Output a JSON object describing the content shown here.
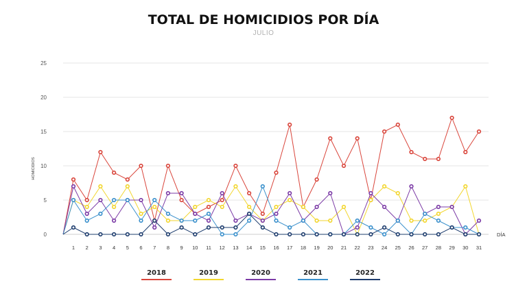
{
  "title": "TOTAL DE HOMICIDIOS POR DÍA",
  "subtitle": "JULIO",
  "chart_data": {
    "type": "line",
    "title": "TOTAL DE HOMICIDIOS POR DÍA",
    "subtitle": "JULIO",
    "xlabel": "DÍA",
    "ylabel": "HOMICIDIOS",
    "ylim": [
      0,
      25
    ],
    "yticks": [
      0,
      5,
      10,
      15,
      20,
      25
    ],
    "grid": true,
    "legend_position": "bottom",
    "x": [
      1,
      2,
      3,
      4,
      5,
      6,
      7,
      8,
      9,
      10,
      11,
      12,
      13,
      14,
      15,
      16,
      17,
      18,
      19,
      20,
      21,
      22,
      23,
      24,
      25,
      26,
      27,
      28,
      29,
      30,
      31
    ],
    "series": [
      {
        "name": "2018",
        "color": "#d9453b",
        "values": [
          8,
          5,
          12,
          9,
          8,
          10,
          2,
          10,
          5,
          3,
          4,
          5,
          10,
          6,
          3,
          9,
          16,
          4,
          8,
          14,
          10,
          14,
          5,
          15,
          16,
          12,
          11,
          11,
          17,
          12,
          15
        ]
      },
      {
        "name": "2019",
        "color": "#f2d62e",
        "values": [
          5,
          4,
          7,
          4,
          7,
          3,
          4,
          2,
          2,
          4,
          5,
          4,
          7,
          4,
          2,
          4,
          5,
          4,
          2,
          2,
          4,
          0,
          5,
          7,
          6,
          2,
          2,
          3,
          4,
          7,
          0
        ]
      },
      {
        "name": "2020",
        "color": "#7b3aa6",
        "values": [
          7,
          3,
          5,
          2,
          5,
          5,
          1,
          6,
          6,
          3,
          2,
          6,
          2,
          3,
          2,
          3,
          6,
          2,
          4,
          6,
          0,
          1,
          6,
          4,
          2,
          7,
          3,
          4,
          4,
          0,
          2
        ]
      },
      {
        "name": "2021",
        "color": "#3a90cc",
        "values": [
          5,
          2,
          3,
          5,
          5,
          2,
          5,
          3,
          2,
          2,
          3,
          0,
          0,
          2,
          7,
          2,
          1,
          2,
          0,
          0,
          0,
          2,
          1,
          0,
          2,
          0,
          3,
          2,
          1,
          1,
          0
        ]
      },
      {
        "name": "2022",
        "color": "#1e3d6e",
        "values": [
          1,
          0,
          0,
          0,
          0,
          0,
          2,
          0,
          1,
          0,
          1,
          1,
          1,
          3,
          1,
          0,
          0,
          0,
          0,
          0,
          0,
          0,
          0,
          1,
          0,
          0,
          0,
          0,
          1,
          0,
          0
        ]
      }
    ]
  }
}
